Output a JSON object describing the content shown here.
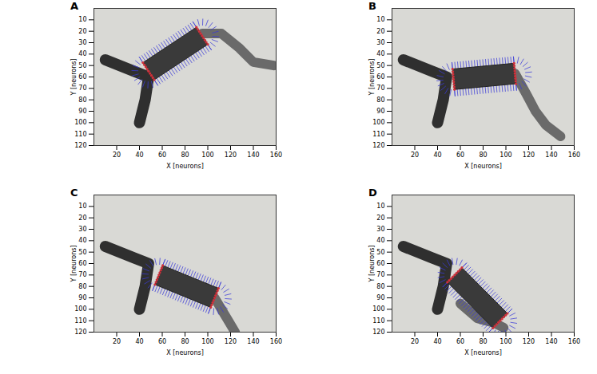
{
  "chart_data": [
    {
      "type": "image",
      "title": "A",
      "xlabel": "X [neurons]",
      "ylabel": "Y [neurons]",
      "xlim": [
        0,
        160
      ],
      "ylim": [
        120,
        0
      ],
      "xticks": [
        20,
        40,
        60,
        80,
        100,
        120,
        140,
        160
      ],
      "yticks": [
        10,
        20,
        30,
        40,
        50,
        60,
        70,
        80,
        90,
        100,
        110,
        120
      ],
      "object": [
        [
          48,
          55
        ],
        [
          95,
          24
        ]
      ],
      "arm": [
        [
          95,
          22
        ],
        [
          112,
          22
        ],
        [
          128,
          35
        ],
        [
          140,
          47
        ],
        [
          158,
          50
        ]
      ],
      "base": [
        [
          10,
          45
        ],
        [
          35,
          55
        ],
        [
          48,
          60
        ],
        [
          45,
          80
        ],
        [
          40,
          100
        ]
      ]
    },
    {
      "type": "image",
      "title": "B",
      "xlabel": "X [neurons]",
      "ylabel": "Y [neurons]",
      "xlim": [
        0,
        160
      ],
      "ylim": [
        120,
        0
      ],
      "xticks": [
        20,
        40,
        60,
        80,
        100,
        120,
        140,
        160
      ],
      "yticks": [
        10,
        20,
        30,
        40,
        50,
        60,
        70,
        80,
        90,
        100,
        110,
        120
      ],
      "object": [
        [
          54,
          62
        ],
        [
          108,
          57
        ]
      ],
      "arm": [
        [
          108,
          57
        ],
        [
          118,
          75
        ],
        [
          126,
          90
        ],
        [
          135,
          102
        ],
        [
          148,
          112
        ]
      ],
      "base": [
        [
          10,
          45
        ],
        [
          35,
          55
        ],
        [
          48,
          60
        ],
        [
          45,
          80
        ],
        [
          40,
          100
        ]
      ]
    },
    {
      "type": "image",
      "title": "C",
      "xlabel": "X [neurons]",
      "ylabel": "Y [neurons]",
      "xlim": [
        0,
        160
      ],
      "ylim": [
        120,
        0
      ],
      "xticks": [
        20,
        40,
        60,
        80,
        100,
        120,
        140,
        160
      ],
      "yticks": [
        10,
        20,
        30,
        40,
        50,
        60,
        70,
        80,
        90,
        100,
        110,
        120
      ],
      "object": [
        [
          57,
          70
        ],
        [
          106,
          90
        ]
      ],
      "arm": [
        [
          106,
          90
        ],
        [
          112,
          100
        ],
        [
          118,
          110
        ],
        [
          124,
          120
        ]
      ],
      "base": [
        [
          10,
          45
        ],
        [
          35,
          55
        ],
        [
          48,
          60
        ],
        [
          45,
          80
        ],
        [
          40,
          100
        ]
      ]
    },
    {
      "type": "image",
      "title": "D",
      "xlabel": "X [neurons]",
      "ylabel": "Y [neurons]",
      "xlim": [
        0,
        160
      ],
      "ylim": [
        120,
        0
      ],
      "xticks": [
        20,
        40,
        60,
        80,
        100,
        120,
        140,
        160
      ],
      "yticks": [
        10,
        20,
        30,
        40,
        50,
        60,
        70,
        80,
        90,
        100,
        110,
        120
      ],
      "object": [
        [
          55,
          70
        ],
        [
          95,
          110
        ]
      ],
      "arm": [
        [
          60,
          95
        ],
        [
          75,
          108
        ],
        [
          90,
          112
        ],
        [
          98,
          116
        ]
      ],
      "base": [
        [
          10,
          45
        ],
        [
          35,
          55
        ],
        [
          48,
          60
        ],
        [
          45,
          80
        ],
        [
          40,
          100
        ]
      ]
    }
  ]
}
